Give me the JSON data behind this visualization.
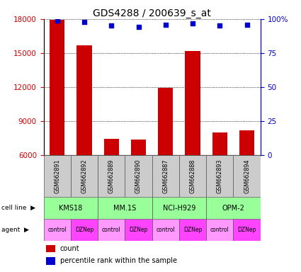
{
  "title": "GDS4288 / 200639_s_at",
  "samples": [
    "GSM662891",
    "GSM662892",
    "GSM662889",
    "GSM662890",
    "GSM662887",
    "GSM662888",
    "GSM662893",
    "GSM662894"
  ],
  "counts": [
    17900,
    15700,
    7400,
    7350,
    11950,
    15200,
    8000,
    8200
  ],
  "percentile_ranks": [
    99,
    98,
    95,
    94,
    96,
    97,
    95,
    96
  ],
  "ylim_left": [
    6000,
    18000
  ],
  "ylim_right": [
    0,
    100
  ],
  "yticks_left": [
    6000,
    9000,
    12000,
    15000,
    18000
  ],
  "yticks_right": [
    0,
    25,
    50,
    75,
    100
  ],
  "bar_color": "#cc0000",
  "dot_color": "#0000cc",
  "cell_lines": [
    "KMS18",
    "MM.1S",
    "NCI-H929",
    "OPM-2"
  ],
  "cell_line_color": "#99ff99",
  "agent_control_color": "#ff99ff",
  "agent_dznep_color": "#ff44ff",
  "agents": [
    "control",
    "DZNep",
    "control",
    "DZNep",
    "control",
    "DZNep",
    "control",
    "DZNep"
  ],
  "left_axis_color": "#cc0000",
  "right_axis_color": "#0000cc",
  "background_color": "#ffffff",
  "grid_color": "#000000",
  "title_fontsize": 10,
  "tick_fontsize": 7.5
}
